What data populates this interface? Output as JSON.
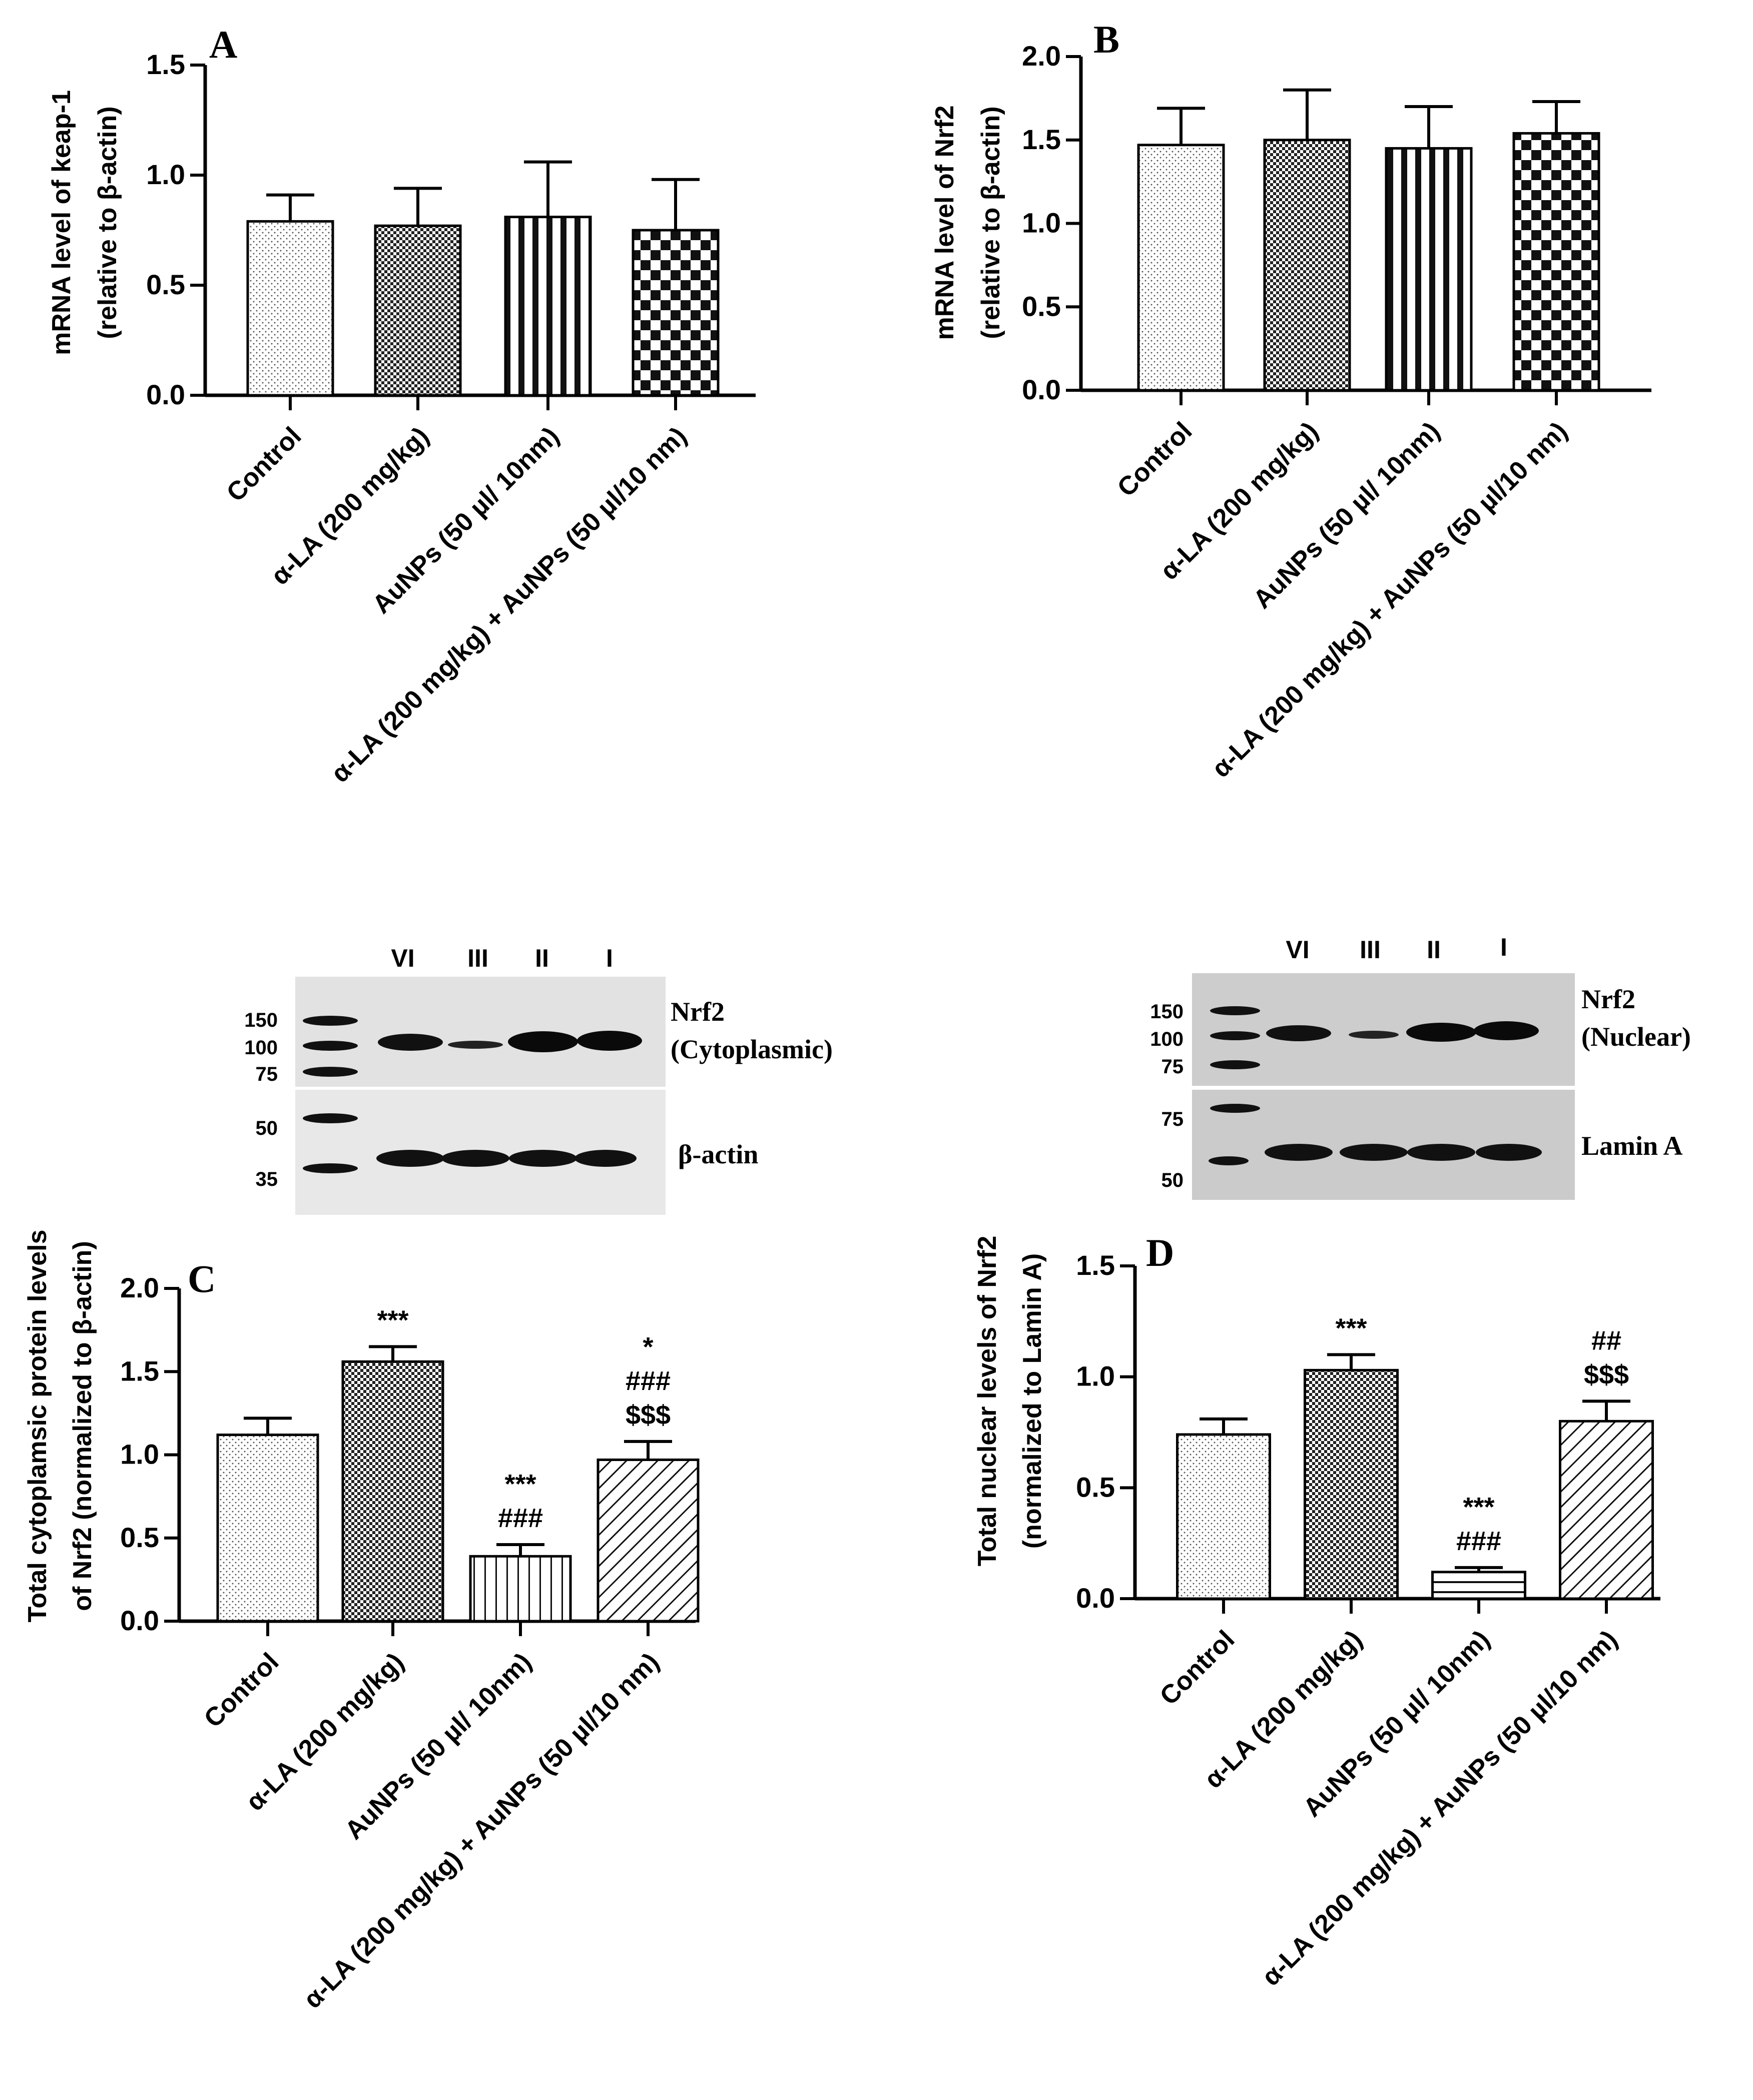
{
  "categories": [
    "Control",
    "α-LA  (200 mg/kg)",
    "AuNPs (50 µl/ 10nm)",
    "α-LA  (200 mg/kg) + AuNPs (50 µl/10 nm)"
  ],
  "chart_data": [
    {
      "panel": "A",
      "type": "bar",
      "categories": [
        "Control",
        "α-LA  (200 mg/kg)",
        "AuNPs (50 µl/ 10nm)",
        "α-LA  (200 mg/kg) + AuNPs (50 µl/10 nm)"
      ],
      "values": [
        0.79,
        0.77,
        0.81,
        0.75
      ],
      "errors": [
        0.12,
        0.17,
        0.25,
        0.23
      ],
      "ylabel": [
        "mRNA level of keap-1",
        "(relative to β-actin)"
      ],
      "ylim": [
        0,
        1.5
      ],
      "ticks": [
        0,
        0.5,
        1.0,
        1.5
      ],
      "tick_labels": [
        "0.0",
        "0.5",
        "1.0",
        "1.5"
      ],
      "patterns": [
        "dots",
        "checker-small",
        "vstripes-bold",
        "checker-large"
      ],
      "annotations": [
        [],
        [],
        [],
        []
      ]
    },
    {
      "panel": "B",
      "type": "bar",
      "categories": [
        "Control",
        "α-LA  (200 mg/kg)",
        "AuNPs (50 µl/ 10nm)",
        "α-LA  (200 mg/kg) + AuNPs (50 µl/10 nm)"
      ],
      "values": [
        1.47,
        1.5,
        1.45,
        1.54
      ],
      "errors": [
        0.22,
        0.3,
        0.25,
        0.19
      ],
      "ylabel": [
        "mRNA level of Nrf2",
        "(relative to β-actin)"
      ],
      "ylim": [
        0,
        2.0
      ],
      "ticks": [
        0,
        0.5,
        1.0,
        1.5,
        2.0
      ],
      "tick_labels": [
        "0.0",
        "0.5",
        "1.0",
        "1.5",
        "2.0"
      ],
      "patterns": [
        "dots",
        "checker-small",
        "vstripes-bold",
        "checker-large"
      ],
      "annotations": [
        [],
        [],
        [],
        []
      ]
    },
    {
      "panel": "C",
      "type": "bar",
      "categories": [
        "Control",
        "α-LA  (200 mg/kg)",
        "AuNPs (50 µl/ 10nm)",
        "α-LA  (200 mg/kg) + AuNPs (50 µl/10 nm)"
      ],
      "values": [
        1.12,
        1.56,
        0.39,
        0.97
      ],
      "errors": [
        0.1,
        0.09,
        0.07,
        0.11
      ],
      "ylabel": [
        "Total cytoplamsic protein levels",
        "of Nrf2 (normalized to β-actin)"
      ],
      "ylim": [
        0,
        2.0
      ],
      "ticks": [
        0,
        0.5,
        1.0,
        1.5,
        2.0
      ],
      "tick_labels": [
        "0.0",
        "0.5",
        "1.0",
        "1.5",
        "2.0"
      ],
      "patterns": [
        "dots",
        "checker-small",
        "vstripes-thin",
        "diagonal"
      ],
      "annotations": [
        [],
        [
          "***"
        ],
        [
          "***",
          "###"
        ],
        [
          "*",
          "###",
          "$$$"
        ]
      ]
    },
    {
      "panel": "D",
      "type": "bar",
      "categories": [
        "Control",
        "α-LA  (200 mg/kg)",
        "AuNPs (50 µl/ 10nm)",
        "α-LA  (200 mg/kg) + AuNPs (50 µl/10 nm)"
      ],
      "values": [
        0.74,
        1.03,
        0.12,
        0.8
      ],
      "errors": [
        0.07,
        0.07,
        0.02,
        0.09
      ],
      "ylabel": [
        "Total nuclear levels of Nrf2",
        "(normalized to Lamin A)"
      ],
      "ylim": [
        0,
        1.5
      ],
      "ticks": [
        0,
        0.5,
        1.0,
        1.5
      ],
      "tick_labels": [
        "0.0",
        "0.5",
        "1.0",
        "1.5"
      ],
      "patterns": [
        "dots",
        "checker-small",
        "hstripes",
        "diagonal"
      ],
      "annotations": [
        [],
        [
          "***"
        ],
        [
          "***",
          "###"
        ],
        [
          "##",
          "$$$"
        ]
      ]
    }
  ],
  "blots": [
    {
      "lanes": [
        "VI",
        "III",
        "II",
        "I"
      ],
      "marker_top": [
        "150",
        "100",
        "75"
      ],
      "marker_bottom": [
        "50",
        "35"
      ],
      "label_top": [
        "Nrf2",
        "(Cytoplasmic)"
      ],
      "label_bottom": "β-actin"
    },
    {
      "lanes": [
        "VI",
        "III",
        "II",
        "I"
      ],
      "marker_top": [
        "150",
        "100",
        "75"
      ],
      "marker_bottom": [
        "75",
        "50"
      ],
      "label_top": [
        "Nrf2",
        "(Nuclear)"
      ],
      "label_bottom": "Lamin A"
    }
  ]
}
